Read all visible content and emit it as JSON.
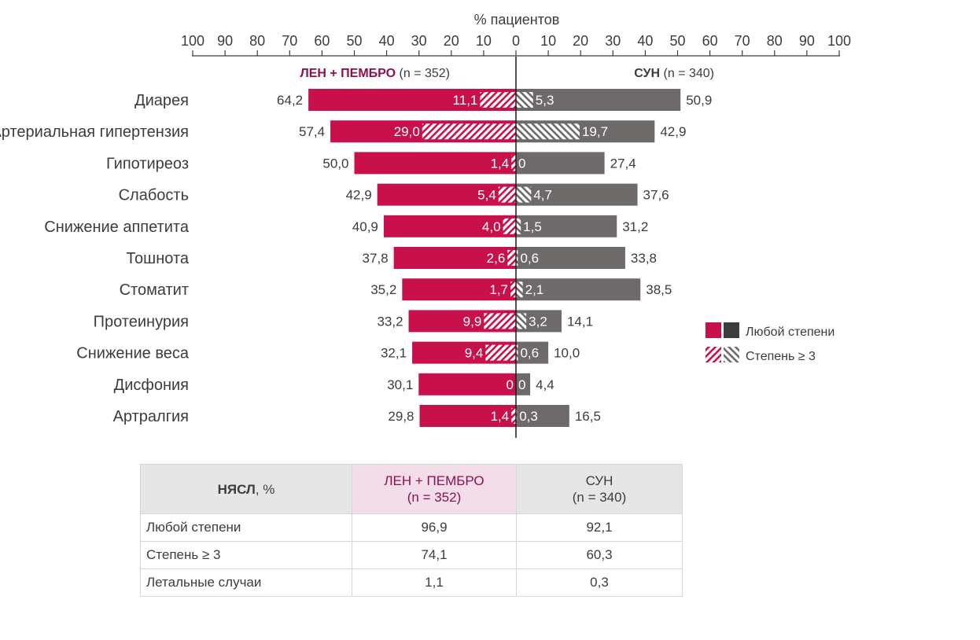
{
  "chart_data": {
    "type": "bar",
    "orientation": "horizontal-diverging",
    "axis_title": "% пациентов",
    "axis_ticks_left": [
      "100",
      "90",
      "80",
      "70",
      "60",
      "50",
      "40",
      "30",
      "20",
      "10",
      "0"
    ],
    "axis_ticks_right": [
      "10",
      "20",
      "30",
      "40",
      "50",
      "60",
      "70",
      "80",
      "90",
      "100"
    ],
    "xlim": [
      -100,
      100
    ],
    "left_group": {
      "name": "ЛЕН + ПЕМБРО",
      "n": "(n = 352)",
      "color": "#c8104a"
    },
    "right_group": {
      "name": "СУН",
      "n": "(n = 340)",
      "color": "#6e6a6a"
    },
    "categories": [
      "Диарея",
      "Артериальная гипертензия",
      "Гипотиреоз",
      "Слабость",
      "Снижение аппетита",
      "Тошнота",
      "Стоматит",
      "Протеинурия",
      "Снижение веса",
      "Дисфония",
      "Артралгия"
    ],
    "series": [
      {
        "name": "ЛЕН + ПЕМБРО — Любой степени",
        "values": [
          64.2,
          57.4,
          50.0,
          42.9,
          40.9,
          37.8,
          35.2,
          33.2,
          32.1,
          30.1,
          29.8
        ],
        "labels": [
          "64,2",
          "57,4",
          "50,0",
          "42,9",
          "40,9",
          "37,8",
          "35,2",
          "33,2",
          "32,1",
          "30,1",
          "29,8"
        ]
      },
      {
        "name": "ЛЕН + ПЕМБРО — Степень ≥ 3",
        "values": [
          11.1,
          29.0,
          1.4,
          5.4,
          4.0,
          2.6,
          1.7,
          9.9,
          9.4,
          0,
          1.4
        ],
        "labels": [
          "11,1",
          "29,0",
          "1,4",
          "5,4",
          "4,0",
          "2,6",
          "1,7",
          "9,9",
          "9,4",
          "0",
          "1,4"
        ]
      },
      {
        "name": "СУН — Любой степени",
        "values": [
          50.9,
          42.9,
          27.4,
          37.6,
          31.2,
          33.8,
          38.5,
          14.1,
          10.0,
          4.4,
          16.5
        ],
        "labels": [
          "50,9",
          "42,9",
          "27,4",
          "37,6",
          "31,2",
          "33,8",
          "38,5",
          "14,1",
          "10,0",
          "4,4",
          "16,5"
        ]
      },
      {
        "name": "СУН — Степень ≥ 3",
        "values": [
          5.3,
          19.7,
          0,
          4.7,
          1.5,
          0.6,
          2.1,
          3.2,
          0.6,
          0,
          0.3
        ],
        "labels": [
          "5,3",
          "19,7",
          "0",
          "4,7",
          "1,5",
          "0,6",
          "2,1",
          "3,2",
          "0,6",
          "0",
          "0,3"
        ]
      }
    ],
    "legend": {
      "any_grade": "Любой степени",
      "grade3": "Степень ≥ 3",
      "position": "right"
    }
  },
  "table": {
    "header_col0_bold": "НЯСЛ",
    "header_col0_rest": ", %",
    "header_col1_line1": "ЛЕН + ПЕМБРО",
    "header_col1_line2": "(n = 352)",
    "header_col2_line1": "СУН",
    "header_col2_line2": "(n = 340)",
    "rows": [
      {
        "label": "Любой степени",
        "a": "96,9",
        "b": "92,1"
      },
      {
        "label": "Степень ≥ 3",
        "a": "74,1",
        "b": "60,3"
      },
      {
        "label": "Летальные случаи",
        "a": "1,1",
        "b": "0,3"
      }
    ]
  },
  "colors": {
    "magenta": "#c8104a",
    "gray": "#6e6a6a",
    "dark_gray": "#3d3d3d",
    "text": "#3c3c3c",
    "header_magenta": "#8c1150"
  }
}
